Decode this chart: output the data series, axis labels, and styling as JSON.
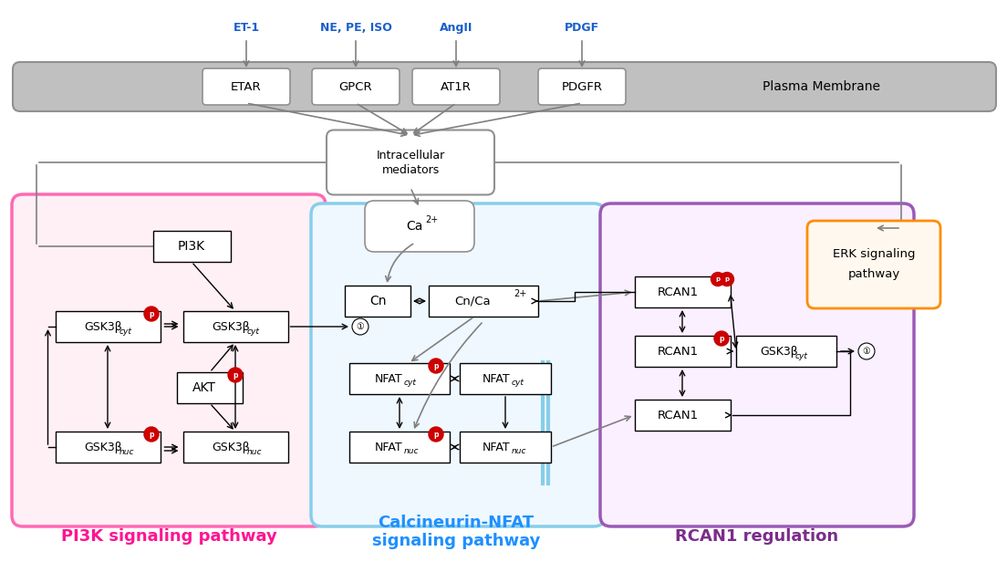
{
  "bg_color": "#ffffff",
  "membrane_text": "Plasma Membrane",
  "receptors": [
    "ETAR",
    "GPCR",
    "AT1R",
    "PDGFR"
  ],
  "ligands": [
    "ET-1",
    "NE, PE, ISO",
    "AngII",
    "PDGF"
  ],
  "ligand_color": "#1a5fcc",
  "arrow_color": "#808080",
  "phospho_color": "#cc0000",
  "pi3k_fill": "#fff0f5",
  "pi3k_border": "#ff69b4",
  "cn_fill": "#f0f8ff",
  "cn_border": "#87ceeb",
  "rcan_fill": "#faf0ff",
  "rcan_border": "#9b59b6",
  "erk_fill": "#fff8ee",
  "erk_border": "#ff8c00",
  "label_pi3k": "PI3K signaling pathway",
  "label_pi3k_color": "#ff1493",
  "label_cn": "Calcineurin-NFAT\nsignaling pathway",
  "label_cn_color": "#1e90ff",
  "label_rcan": "RCAN1 regulation",
  "label_rcan_color": "#7b2d8b"
}
